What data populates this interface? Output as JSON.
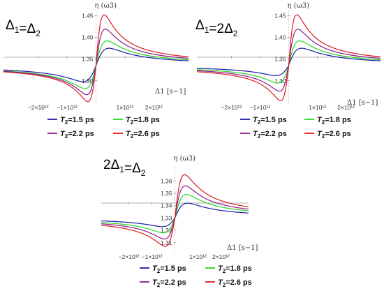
{
  "chart_data": [
    {
      "type": "line",
      "title": "Δ1=Δ2",
      "xlabel": "Δ1 [s−1]",
      "ylabel": "η (ω3)",
      "xlim": [
        -3200000000000.0,
        3200000000000.0
      ],
      "ylim": [
        1.245,
        1.47
      ],
      "x_ticks": [
        "−2×10¹²",
        "−1×10¹²",
        "1×10¹²",
        "2×10¹²"
      ],
      "y_ticks": [
        "1.30",
        "1.35",
        "1.40",
        "1.45"
      ],
      "baseline": 1.335,
      "series": [
        {
          "name": "T2=1.5 ps",
          "color": "#1a1aa8",
          "peak": 1.375,
          "trough": 1.298
        },
        {
          "name": "T2=1.8 ps",
          "color": "#22d822",
          "peak": 1.392,
          "trough": 1.282
        },
        {
          "name": "T2=2.2 ps",
          "color": "#8b1a8b",
          "peak": 1.419,
          "trough": 1.268
        },
        {
          "name": "T2=2.6 ps",
          "color": "#e0191c",
          "peak": 1.452,
          "trough": 1.252
        }
      ]
    },
    {
      "type": "line",
      "title": "Δ1=2Δ2",
      "xlabel": "Δ1 [s−1]",
      "ylabel": "η (ω3)",
      "xlim": [
        -3200000000000.0,
        3200000000000.0
      ],
      "ylim": [
        1.245,
        1.47
      ],
      "x_ticks": [
        "−2×10¹²",
        "−1×10¹²",
        "1×10¹²",
        "2×10¹²"
      ],
      "y_ticks": [
        "1.30",
        "1.35",
        "1.40",
        "1.45"
      ],
      "baseline": 1.335,
      "series": [
        {
          "name": "T2=1.5 ps",
          "color": "#1a1aa8",
          "peak": 1.375,
          "trough": 1.312
        },
        {
          "name": "T2=1.8 ps",
          "color": "#22d822",
          "peak": 1.392,
          "trough": 1.295
        },
        {
          "name": "T2=2.2 ps",
          "color": "#8b1a8b",
          "peak": 1.419,
          "trough": 1.276
        },
        {
          "name": "T2=2.6 ps",
          "color": "#e0191c",
          "peak": 1.452,
          "trough": 1.254
        }
      ]
    },
    {
      "type": "line",
      "title": "2Δ1=Δ2",
      "xlabel": "Δ1 [s−1]",
      "ylabel": "η (ω3)",
      "xlim": [
        -3200000000000.0,
        3200000000000.0
      ],
      "ylim": [
        1.302,
        1.372
      ],
      "x_ticks": [
        "−2×10¹²",
        "−1×10¹²",
        "1×10¹²",
        "2×10¹²"
      ],
      "y_ticks": [
        "1.31",
        "1.32",
        "1.33",
        "1.34",
        "1.35",
        "1.36"
      ],
      "baseline": 1.33,
      "series": [
        {
          "name": "T2=1.5 ps",
          "color": "#1a1aa8",
          "peak": 1.342,
          "trough": 1.323
        },
        {
          "name": "T2=1.8 ps",
          "color": "#22d822",
          "peak": 1.349,
          "trough": 1.318
        },
        {
          "name": "T2=2.2 ps",
          "color": "#8b1a8b",
          "peak": 1.356,
          "trough": 1.313
        },
        {
          "name": "T2=2.6 ps",
          "color": "#e0191c",
          "peak": 1.365,
          "trough": 1.307
        }
      ]
    }
  ]
}
